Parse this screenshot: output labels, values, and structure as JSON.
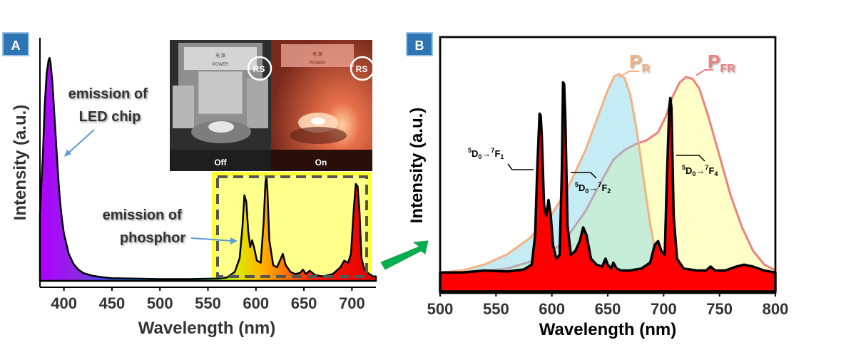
{
  "colors": {
    "axis": "#000000",
    "pr": "#f4b183",
    "pfr": "#f08080",
    "emission": "#ff0000",
    "highlight": "#ffff66",
    "badge": "#2e75b6",
    "arrow": "#00b050"
  },
  "photo": {
    "off_label": "Off",
    "on_label": "On",
    "power_label": "POWER",
    "device_glyph": "电 源",
    "rs_label": "RS"
  },
  "chart_data": [
    {
      "type": "line",
      "panel_label": "A",
      "xlabel": "Wavelength (nm)",
      "ylabel": "Intensity (a.u.)",
      "xlim": [
        375,
        725
      ],
      "ylim": [
        0,
        1.0
      ],
      "xticks": [
        "400",
        "450",
        "500",
        "550",
        "600",
        "650",
        "700"
      ],
      "xtick_values": [
        400,
        450,
        500,
        550,
        600,
        650,
        700
      ],
      "annotations": {
        "led": [
          "emission of",
          "LED chip"
        ],
        "phosphor": [
          "emission of",
          "phosphor"
        ]
      },
      "series": [
        {
          "x": [
            375,
            378,
            380,
            382,
            384,
            385,
            386,
            388,
            390,
            392,
            394,
            396,
            398,
            400,
            405,
            410,
            415,
            420,
            430,
            440,
            450,
            470,
            500,
            530,
            560,
            570,
            578,
            583,
            586,
            588,
            590,
            592,
            594,
            596,
            598,
            601,
            605,
            608,
            610,
            611,
            612,
            614,
            618,
            622,
            626,
            628,
            631,
            636,
            641,
            646,
            649,
            652,
            656,
            662,
            670,
            680,
            688,
            692,
            696,
            699,
            702,
            704,
            706,
            708,
            710,
            713,
            718,
            722,
            725
          ],
          "y": [
            0.3,
            0.55,
            0.78,
            0.92,
            0.98,
            0.99,
            0.97,
            0.88,
            0.74,
            0.6,
            0.46,
            0.35,
            0.27,
            0.21,
            0.12,
            0.075,
            0.05,
            0.035,
            0.022,
            0.016,
            0.012,
            0.01,
            0.008,
            0.008,
            0.01,
            0.015,
            0.04,
            0.1,
            0.24,
            0.38,
            0.35,
            0.22,
            0.15,
            0.18,
            0.15,
            0.09,
            0.08,
            0.26,
            0.44,
            0.46,
            0.4,
            0.18,
            0.07,
            0.06,
            0.1,
            0.12,
            0.07,
            0.04,
            0.03,
            0.035,
            0.05,
            0.03,
            0.045,
            0.025,
            0.02,
            0.03,
            0.06,
            0.09,
            0.08,
            0.12,
            0.32,
            0.43,
            0.42,
            0.3,
            0.1,
            0.05,
            0.03,
            0.02,
            0.02
          ]
        }
      ]
    },
    {
      "type": "line",
      "panel_label": "B",
      "xlabel": "Wavelength (nm)",
      "ylabel": "Intensity (a.u.)",
      "xlim": [
        500,
        800
      ],
      "ylim": [
        0,
        1.0
      ],
      "xticks": [
        "500",
        "550",
        "600",
        "650",
        "700",
        "750",
        "800"
      ],
      "xtick_values": [
        500,
        550,
        600,
        650,
        700,
        750,
        800
      ],
      "annotations": {
        "f1": {
          "pre": "5",
          "a": "D",
          "asub": "0",
          "arrow": "→",
          "mid": "7",
          "b": "F",
          "bsub": "1"
        },
        "f2": {
          "pre": "5",
          "a": "D",
          "asub": "0",
          "arrow": "→",
          "mid": "7",
          "b": "F",
          "bsub": "2"
        },
        "f4": {
          "pre": "5",
          "a": "D",
          "asub": "0",
          "arrow": "→",
          "mid": "7",
          "b": "F",
          "bsub": "4"
        }
      },
      "series": [
        {
          "name": "PR",
          "label_main": "P",
          "label_sub": "R",
          "x": [
            500,
            520,
            540,
            560,
            580,
            600,
            615,
            630,
            640,
            650,
            656,
            660,
            665,
            670,
            676,
            682,
            688,
            694,
            700
          ],
          "y": [
            0.01,
            0.02,
            0.05,
            0.1,
            0.18,
            0.3,
            0.44,
            0.62,
            0.77,
            0.92,
            0.99,
            1.0,
            0.98,
            0.9,
            0.72,
            0.48,
            0.25,
            0.08,
            0.02
          ]
        },
        {
          "name": "PFR",
          "label_main": "P",
          "label_sub": "FR",
          "x": [
            500,
            530,
            560,
            590,
            610,
            630,
            645,
            655,
            665,
            675,
            685,
            695,
            702,
            708,
            714,
            720,
            726,
            732,
            740,
            750,
            760,
            770,
            780,
            790,
            800
          ],
          "y": [
            0.005,
            0.01,
            0.03,
            0.08,
            0.16,
            0.32,
            0.48,
            0.58,
            0.63,
            0.66,
            0.68,
            0.72,
            0.8,
            0.9,
            0.97,
            1.0,
            0.99,
            0.94,
            0.8,
            0.6,
            0.4,
            0.24,
            0.12,
            0.05,
            0.02
          ]
        },
        {
          "name": "emission",
          "x": [
            500,
            520,
            540,
            560,
            575,
            582,
            585,
            587,
            589,
            590,
            591,
            593,
            595,
            597,
            599,
            601,
            604,
            607,
            609,
            610,
            611,
            612,
            614,
            617,
            621,
            625,
            628,
            631,
            635,
            640,
            645,
            648,
            650,
            653,
            655,
            658,
            662,
            670,
            680,
            688,
            692,
            695,
            698,
            701,
            703,
            705,
            706,
            707,
            709,
            712,
            718,
            730,
            738,
            742,
            746,
            755,
            765,
            772,
            780,
            790,
            800
          ],
          "y": [
            0.01,
            0.01,
            0.02,
            0.015,
            0.025,
            0.05,
            0.2,
            0.55,
            0.82,
            0.81,
            0.7,
            0.35,
            0.3,
            0.38,
            0.3,
            0.15,
            0.08,
            0.1,
            0.55,
            0.98,
            0.97,
            0.8,
            0.25,
            0.1,
            0.12,
            0.17,
            0.24,
            0.2,
            0.08,
            0.05,
            0.04,
            0.08,
            0.05,
            0.03,
            0.06,
            0.03,
            0.02,
            0.02,
            0.03,
            0.06,
            0.15,
            0.17,
            0.12,
            0.1,
            0.5,
            0.85,
            0.9,
            0.85,
            0.3,
            0.08,
            0.03,
            0.02,
            0.02,
            0.04,
            0.02,
            0.02,
            0.04,
            0.05,
            0.04,
            0.02,
            0.01
          ]
        }
      ]
    }
  ]
}
